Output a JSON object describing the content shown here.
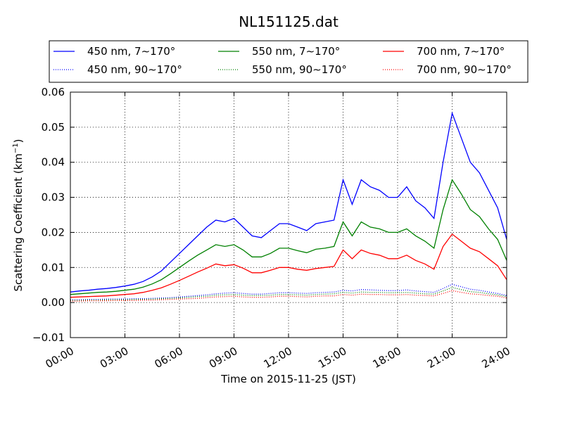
{
  "chart_data": {
    "type": "line",
    "title": "NL151125.dat",
    "xlabel": "Time on 2015-11-25 (JST)",
    "ylabel_main": "Scattering Coefficient (km",
    "ylabel_sup": "−1",
    "ylabel_end": ")",
    "ylim": [
      -0.01,
      0.06
    ],
    "xlim_hours": [
      0,
      24
    ],
    "x_ticks": [
      {
        "hour": 0,
        "label": "00:00"
      },
      {
        "hour": 3,
        "label": "03:00"
      },
      {
        "hour": 6,
        "label": "06:00"
      },
      {
        "hour": 9,
        "label": "09:00"
      },
      {
        "hour": 12,
        "label": "12:00"
      },
      {
        "hour": 15,
        "label": "15:00"
      },
      {
        "hour": 18,
        "label": "18:00"
      },
      {
        "hour": 21,
        "label": "21:00"
      },
      {
        "hour": 24,
        "label": "24:00"
      }
    ],
    "y_ticks": [
      {
        "value": -0.01,
        "label": "−0.01"
      },
      {
        "value": 0.0,
        "label": "0.00"
      },
      {
        "value": 0.01,
        "label": "0.01"
      },
      {
        "value": 0.02,
        "label": "0.02"
      },
      {
        "value": 0.03,
        "label": "0.03"
      },
      {
        "value": 0.04,
        "label": "0.04"
      },
      {
        "value": 0.05,
        "label": "0.05"
      },
      {
        "value": 0.06,
        "label": "0.06"
      }
    ],
    "grid": true,
    "legend_position": "top",
    "x": [
      0,
      0.5,
      1,
      1.5,
      2,
      2.5,
      3,
      3.5,
      4,
      4.5,
      5,
      5.5,
      6,
      6.5,
      7,
      7.5,
      8,
      8.5,
      9,
      9.5,
      10,
      10.5,
      11,
      11.5,
      12,
      12.5,
      13,
      13.5,
      14,
      14.5,
      15,
      15.5,
      16,
      16.5,
      17,
      17.5,
      18,
      18.5,
      19,
      19.5,
      20,
      20.5,
      21,
      21.5,
      22,
      22.5,
      23,
      23.5,
      24
    ],
    "series": [
      {
        "name": "450 nm, 7∼170°",
        "color": "#0000ff",
        "style": "solid",
        "values": [
          0.003,
          0.0033,
          0.0035,
          0.0038,
          0.004,
          0.0043,
          0.0047,
          0.0052,
          0.006,
          0.0073,
          0.009,
          0.0115,
          0.014,
          0.0165,
          0.019,
          0.0215,
          0.0235,
          0.023,
          0.024,
          0.0215,
          0.019,
          0.0185,
          0.0205,
          0.0225,
          0.0225,
          0.0215,
          0.0205,
          0.0225,
          0.023,
          0.0235,
          0.035,
          0.028,
          0.035,
          0.033,
          0.032,
          0.03,
          0.03,
          0.033,
          0.029,
          0.027,
          0.024,
          0.04,
          0.054,
          0.047,
          0.04,
          0.037,
          0.032,
          0.027,
          0.018
        ]
      },
      {
        "name": "550 nm, 7∼170°",
        "color": "#008000",
        "style": "solid",
        "values": [
          0.0023,
          0.0025,
          0.0027,
          0.0029,
          0.003,
          0.0032,
          0.0035,
          0.0038,
          0.0044,
          0.0053,
          0.0065,
          0.0082,
          0.01,
          0.0118,
          0.0135,
          0.015,
          0.0165,
          0.016,
          0.0165,
          0.015,
          0.013,
          0.013,
          0.014,
          0.0155,
          0.0155,
          0.0148,
          0.0142,
          0.0152,
          0.0155,
          0.016,
          0.023,
          0.019,
          0.023,
          0.0215,
          0.021,
          0.02,
          0.02,
          0.021,
          0.019,
          0.0175,
          0.0155,
          0.0265,
          0.035,
          0.031,
          0.0265,
          0.0245,
          0.021,
          0.018,
          0.012
        ]
      },
      {
        "name": "700 nm, 7∼170°",
        "color": "#ff0000",
        "style": "solid",
        "values": [
          0.0015,
          0.0016,
          0.0017,
          0.0018,
          0.0019,
          0.0021,
          0.0023,
          0.0025,
          0.0029,
          0.0035,
          0.0042,
          0.0052,
          0.0063,
          0.0075,
          0.0087,
          0.0098,
          0.011,
          0.0105,
          0.0108,
          0.0098,
          0.0085,
          0.0085,
          0.0092,
          0.01,
          0.01,
          0.0095,
          0.0092,
          0.0097,
          0.01,
          0.0103,
          0.015,
          0.0125,
          0.015,
          0.014,
          0.0135,
          0.0125,
          0.0125,
          0.0135,
          0.012,
          0.011,
          0.0095,
          0.016,
          0.0195,
          0.0175,
          0.0155,
          0.0145,
          0.0125,
          0.0105,
          0.0065
        ]
      },
      {
        "name": "450 nm, 90∼170°",
        "color": "#0000ff",
        "style": "dotted",
        "values": [
          0.0008,
          0.0008,
          0.0009,
          0.0009,
          0.001,
          0.001,
          0.001,
          0.0011,
          0.0011,
          0.0012,
          0.0013,
          0.0014,
          0.0016,
          0.0018,
          0.002,
          0.0022,
          0.0025,
          0.0027,
          0.0028,
          0.0026,
          0.0024,
          0.0024,
          0.0026,
          0.0028,
          0.0028,
          0.0027,
          0.0026,
          0.0028,
          0.0029,
          0.003,
          0.0035,
          0.0033,
          0.0037,
          0.0036,
          0.0035,
          0.0034,
          0.0034,
          0.0036,
          0.0033,
          0.0031,
          0.0029,
          0.004,
          0.0052,
          0.0045,
          0.0038,
          0.0035,
          0.003,
          0.0026,
          0.002
        ]
      },
      {
        "name": "550 nm, 90∼170°",
        "color": "#008000",
        "style": "dotted",
        "values": [
          0.0006,
          0.0006,
          0.0007,
          0.0007,
          0.0008,
          0.0008,
          0.0008,
          0.0009,
          0.0009,
          0.001,
          0.0011,
          0.0012,
          0.0013,
          0.0015,
          0.0017,
          0.0018,
          0.0021,
          0.0022,
          0.0023,
          0.0021,
          0.002,
          0.002,
          0.0021,
          0.0023,
          0.0023,
          0.0022,
          0.0021,
          0.0023,
          0.0024,
          0.0025,
          0.0029,
          0.0027,
          0.003,
          0.0029,
          0.0029,
          0.0028,
          0.0028,
          0.0029,
          0.0027,
          0.0025,
          0.0024,
          0.0033,
          0.0043,
          0.0037,
          0.0031,
          0.0029,
          0.0025,
          0.0022,
          0.0017
        ]
      },
      {
        "name": "700 nm, 90∼170°",
        "color": "#ff0000",
        "style": "dotted",
        "values": [
          0.0004,
          0.0004,
          0.0005,
          0.0005,
          0.0005,
          0.0006,
          0.0006,
          0.0006,
          0.0007,
          0.0007,
          0.0008,
          0.0009,
          0.001,
          0.0011,
          0.0012,
          0.0014,
          0.0016,
          0.0017,
          0.0018,
          0.0016,
          0.0015,
          0.0015,
          0.0016,
          0.0018,
          0.0018,
          0.0017,
          0.0016,
          0.0018,
          0.0019,
          0.0019,
          0.0023,
          0.0021,
          0.0024,
          0.0023,
          0.0023,
          0.0022,
          0.0022,
          0.0023,
          0.0021,
          0.002,
          0.0019,
          0.0026,
          0.0034,
          0.0029,
          0.0025,
          0.0023,
          0.002,
          0.0018,
          0.0013
        ]
      }
    ]
  }
}
